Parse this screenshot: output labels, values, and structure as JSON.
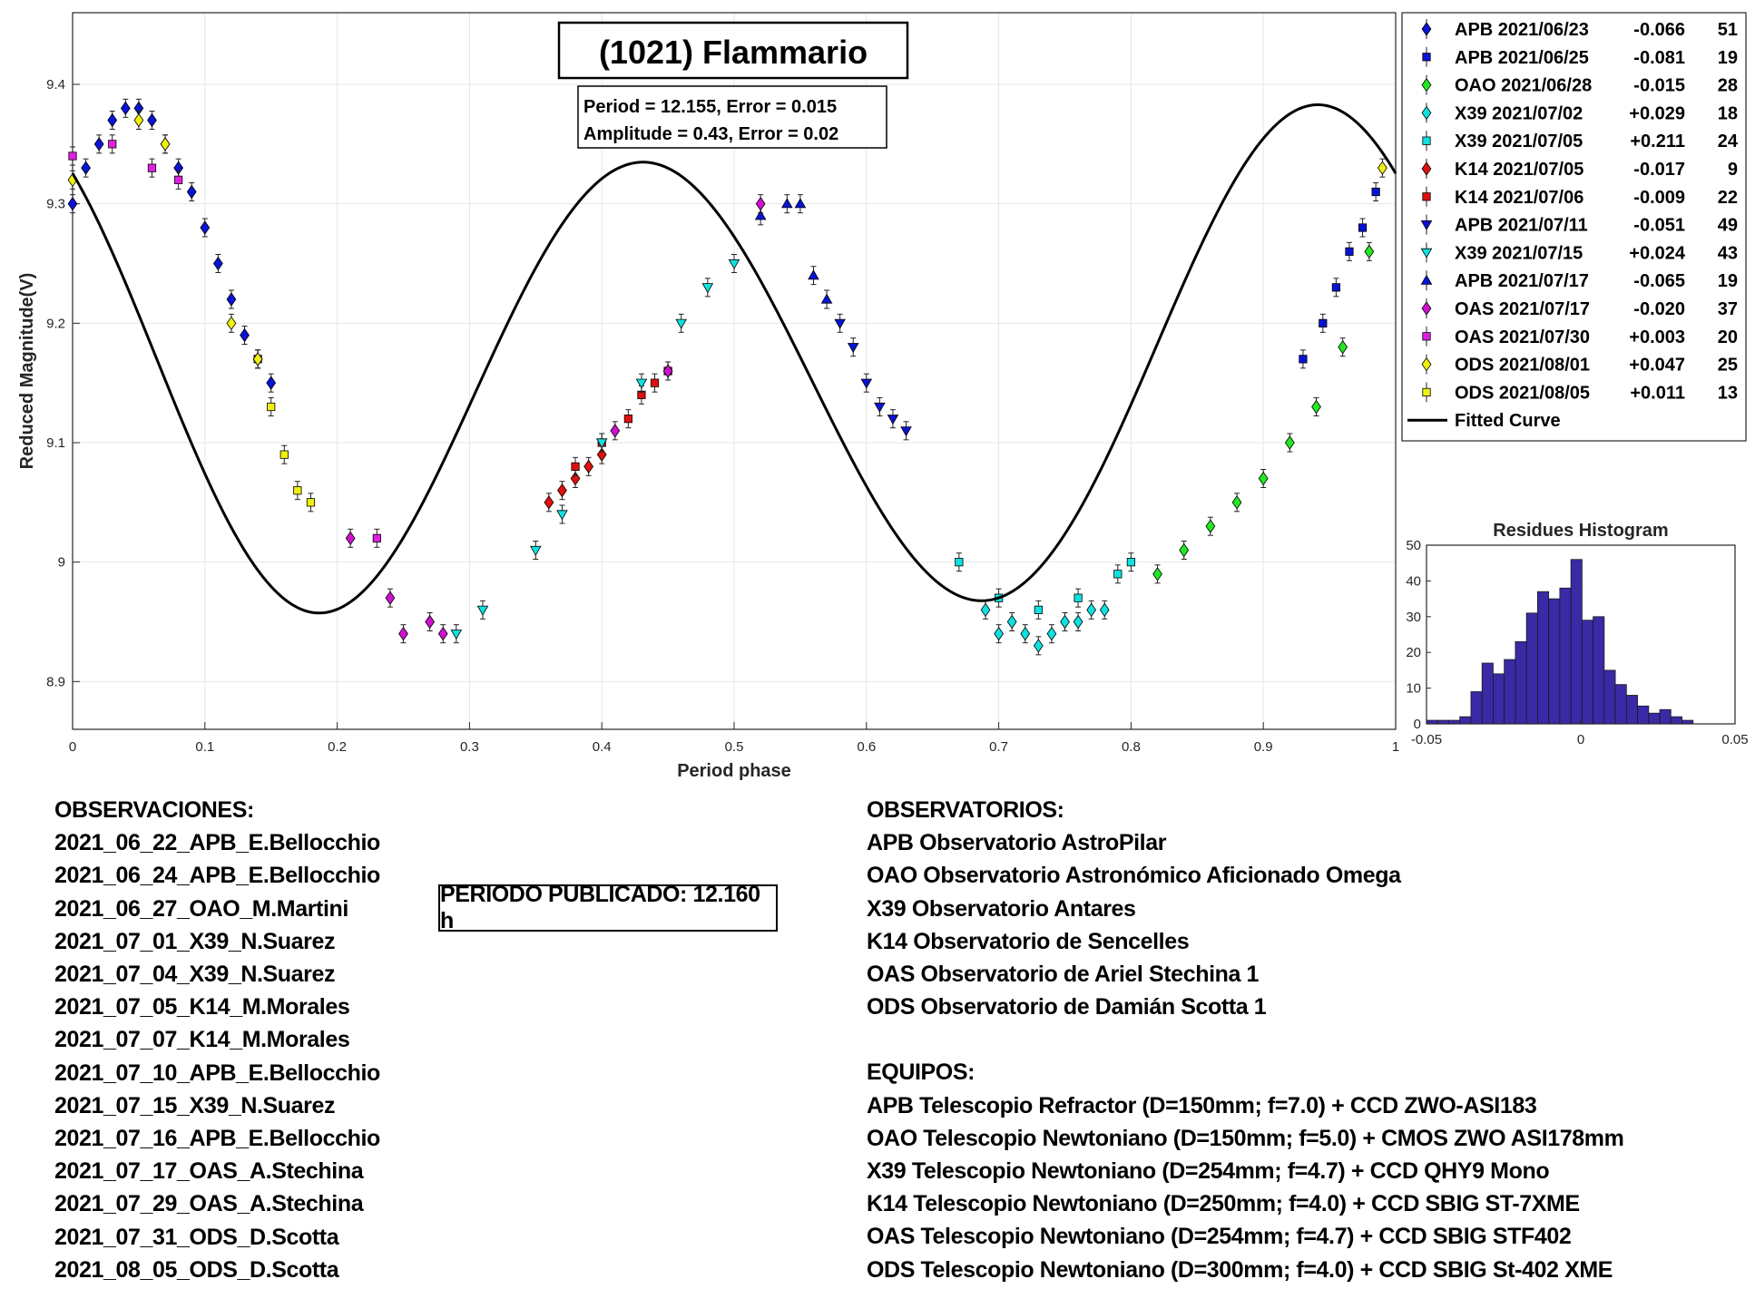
{
  "chart_data": [
    {
      "type": "scatter",
      "title": "(1021) Flammario",
      "fit_info": [
        "Period =  12.155, Error = 0.015",
        "Amplitude = 0.43, Error = 0.02"
      ],
      "xlabel": "Period phase",
      "ylabel": "Reduced Magnitude(V)",
      "xlim": [
        0,
        1
      ],
      "ylim": [
        9.46,
        8.86
      ],
      "y_reversed": true,
      "grid": true,
      "legend_position": "top-right",
      "x_ticks": [
        "0",
        "0.1",
        "0.2",
        "0.3",
        "0.4",
        "0.5",
        "0.6",
        "0.7",
        "0.8",
        "0.9",
        "1"
      ],
      "y_ticks": [
        "8.9",
        "9",
        "9.1",
        "9.2",
        "9.3",
        "9.4"
      ],
      "fitted_curve": {
        "name": "Fitted Curve",
        "mean": 9.1605,
        "terms": [
          {
            "n": 1,
            "a": 0.0172,
            "b": -0.0047
          },
          {
            "n": 2,
            "a": 0.1385,
            "b": -0.1415
          },
          {
            "n": 3,
            "a": 0.0093,
            "b": -0.0032
          }
        ]
      },
      "series": [
        {
          "name": "APB 2021/06/23",
          "offset": "-0.066",
          "count": "51",
          "color": "#0a14d4",
          "marker": "diamond",
          "x": [
            0.0,
            0.01,
            0.02,
            0.03,
            0.04,
            0.05,
            0.06,
            0.07,
            0.08,
            0.09,
            0.1,
            0.11,
            0.12,
            0.13,
            0.14,
            0.15
          ],
          "y": [
            9.3,
            9.33,
            9.35,
            9.37,
            9.38,
            9.38,
            9.37,
            9.35,
            9.33,
            9.31,
            9.28,
            9.25,
            9.22,
            9.19,
            9.17,
            9.15
          ]
        },
        {
          "name": "APB 2021/06/25",
          "offset": "-0.081",
          "count": "19",
          "color": "#0a14d4",
          "marker": "square",
          "x": [
            0.93,
            0.945,
            0.955,
            0.965,
            0.975,
            0.985
          ],
          "y": [
            9.17,
            9.2,
            9.23,
            9.26,
            9.28,
            9.31
          ]
        },
        {
          "name": "OAO 2021/06/28",
          "offset": "-0.015",
          "count": "28",
          "color": "#22e822",
          "marker": "diamond",
          "x": [
            0.82,
            0.84,
            0.86,
            0.88,
            0.9,
            0.92,
            0.94,
            0.96,
            0.98
          ],
          "y": [
            8.99,
            9.01,
            9.03,
            9.05,
            9.07,
            9.1,
            9.13,
            9.18,
            9.26
          ]
        },
        {
          "name": "X39 2021/07/02",
          "offset": "+0.029",
          "count": "18",
          "color": "#10e0e0",
          "marker": "diamond",
          "x": [
            0.69,
            0.7,
            0.71,
            0.72,
            0.73,
            0.74,
            0.75,
            0.76,
            0.77,
            0.78
          ],
          "y": [
            8.96,
            8.94,
            8.95,
            8.94,
            8.93,
            8.94,
            8.95,
            8.95,
            8.96,
            8.96
          ]
        },
        {
          "name": "X39 2021/07/05",
          "offset": "+0.211",
          "count": "24",
          "color": "#10e0e0",
          "marker": "square",
          "x": [
            0.67,
            0.7,
            0.73,
            0.76,
            0.79,
            0.8
          ],
          "y": [
            9.0,
            8.97,
            8.96,
            8.97,
            8.99,
            9.0
          ]
        },
        {
          "name": "K14 2021/07/05",
          "offset": "-0.017",
          "count": "9",
          "color": "#e01010",
          "marker": "diamond",
          "x": [
            0.36,
            0.37,
            0.38,
            0.39,
            0.4
          ],
          "y": [
            9.05,
            9.06,
            9.07,
            9.08,
            9.09
          ]
        },
        {
          "name": "K14 2021/07/06",
          "offset": "-0.009",
          "count": "22",
          "color": "#e01010",
          "marker": "square",
          "x": [
            0.38,
            0.4,
            0.42,
            0.43,
            0.44,
            0.45
          ],
          "y": [
            9.08,
            9.1,
            9.12,
            9.14,
            9.15,
            9.16
          ]
        },
        {
          "name": "APB 2021/07/11",
          "offset": "-0.051",
          "count": "49",
          "color": "#0a14d4",
          "marker": "triangle-down",
          "x": [
            0.58,
            0.59,
            0.6,
            0.61,
            0.62,
            0.63
          ],
          "y": [
            9.2,
            9.18,
            9.15,
            9.13,
            9.12,
            9.11
          ]
        },
        {
          "name": "X39 2021/07/15",
          "offset": "+0.024",
          "count": "43",
          "color": "#10e0e0",
          "marker": "triangle-down",
          "x": [
            0.29,
            0.31,
            0.35,
            0.37,
            0.4,
            0.43,
            0.46,
            0.48,
            0.5
          ],
          "y": [
            8.94,
            8.96,
            9.01,
            9.04,
            9.1,
            9.15,
            9.2,
            9.23,
            9.25
          ]
        },
        {
          "name": "APB 2021/07/17",
          "offset": "-0.065",
          "count": "19",
          "color": "#0a14d4",
          "marker": "triangle-up",
          "x": [
            0.52,
            0.54,
            0.55,
            0.56,
            0.57
          ],
          "y": [
            9.29,
            9.3,
            9.3,
            9.24,
            9.22
          ]
        },
        {
          "name": "OAS 2021/07/17",
          "offset": "-0.020",
          "count": "37",
          "color": "#d010d0",
          "marker": "diamond",
          "x": [
            0.21,
            0.24,
            0.25,
            0.27,
            0.28,
            0.41,
            0.45,
            0.52
          ],
          "y": [
            9.02,
            8.97,
            8.94,
            8.95,
            8.94,
            9.11,
            9.16,
            9.3
          ]
        },
        {
          "name": "OAS 2021/07/30",
          "offset": "+0.003",
          "count": "20",
          "color": "#e020e0",
          "marker": "square",
          "x": [
            0.0,
            0.03,
            0.06,
            0.08,
            0.14,
            0.23
          ],
          "y": [
            9.34,
            9.35,
            9.33,
            9.32,
            9.17,
            9.02
          ]
        },
        {
          "name": "ODS 2021/08/01",
          "offset": "+0.047",
          "count": "25",
          "color": "#f0f010",
          "marker": "diamond",
          "x": [
            0.0,
            0.05,
            0.07,
            0.12,
            0.14,
            0.99
          ],
          "y": [
            9.32,
            9.37,
            9.35,
            9.2,
            9.17,
            9.33
          ]
        },
        {
          "name": "ODS 2021/08/05",
          "offset": "+0.011",
          "count": "13",
          "color": "#f0f010",
          "marker": "square",
          "x": [
            0.15,
            0.16,
            0.17,
            0.18
          ],
          "y": [
            9.13,
            9.09,
            9.06,
            9.05
          ]
        }
      ]
    },
    {
      "type": "bar",
      "title": "Residues Histogram",
      "xlim": [
        -0.05,
        0.05
      ],
      "ylim": [
        0,
        50
      ],
      "x_ticks": [
        "-0.05",
        "0",
        "0.05"
      ],
      "y_ticks": [
        "0",
        "10",
        "20",
        "30",
        "40",
        "50"
      ],
      "bin_start": -0.05,
      "bin_width": 0.0036,
      "values": [
        1,
        1,
        1,
        2,
        9,
        17,
        14,
        18,
        23,
        31,
        37,
        35,
        38,
        46,
        29,
        30,
        15,
        11,
        8,
        5,
        3,
        4,
        2,
        1,
        0,
        0,
        0,
        0
      ],
      "color": "#3a2aa6"
    }
  ],
  "notes": {
    "observations_title": "OBSERVACIONES:",
    "observations": [
      "2021_06_22_APB_E.Bellocchio",
      "2021_06_24_APB_E.Bellocchio",
      "2021_06_27_OAO_M.Martini",
      "2021_07_01_X39_N.Suarez",
      "2021_07_04_X39_N.Suarez",
      "2021_07_05_K14_M.Morales",
      "2021_07_07_K14_M.Morales",
      "2021_07_10_APB_E.Bellocchio",
      "2021_07_15_X39_N.Suarez",
      "2021_07_16_APB_E.Bellocchio",
      "2021_07_17_OAS_A.Stechina",
      "2021_07_29_OAS_A.Stechina",
      "2021_07_31_ODS_D.Scotta",
      "2021_08_05_ODS_D.Scotta"
    ],
    "published_period": "PERIODO PUBLICADO: 12.160 h",
    "observatories_title": "OBSERVATORIOS:",
    "observatories": [
      "APB Observatorio AstroPilar",
      "OAO Observatorio Astronómico Aficionado Omega",
      "X39 Observatorio Antares",
      "K14 Observatorio de Sencelles",
      "OAS Observatorio de Ariel Stechina 1",
      "ODS Observatorio de Damián Scotta 1"
    ],
    "equipment_title": "EQUIPOS:",
    "equipment": [
      "APB Telescopio Refractor (D=150mm; f=7.0) + CCD ZWO-ASI183",
      "OAO Telescopio Newtoniano (D=150mm; f=5.0) + CMOS ZWO ASI178mm",
      "X39 Telescopio Newtoniano (D=254mm; f=4.7) + CCD QHY9 Mono",
      "K14 Telescopio Newtoniano (D=250mm; f=4.0) + CCD SBIG ST-7XME",
      "OAS Telescopio Newtoniano (D=254mm; f=4.7) + CCD SBIG STF402",
      "ODS Telescopio Newtoniano (D=300mm; f=4.0) + CCD SBIG St-402 XME"
    ]
  }
}
